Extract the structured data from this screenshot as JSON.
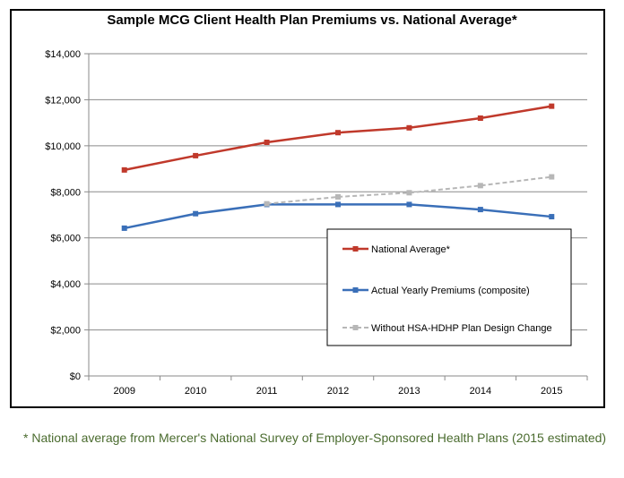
{
  "chart_data": {
    "type": "line",
    "title": "Sample MCG Client Health Plan Premiums vs. National Average*",
    "xlabel": "",
    "ylabel": "",
    "x": [
      "2009",
      "2010",
      "2011",
      "2012",
      "2013",
      "2014",
      "2015"
    ],
    "ylim": [
      0,
      14000
    ],
    "yticks": [
      0,
      2000,
      4000,
      6000,
      8000,
      10000,
      12000,
      14000
    ],
    "ytick_labels": [
      "$0",
      "$2,000",
      "$4,000",
      "$6,000",
      "$8,000",
      "$10,000",
      "$12,000",
      "$14,000"
    ],
    "grid": true,
    "legend_position": "lower-right",
    "series": [
      {
        "name": "National Average*",
        "color": "#c0392b",
        "style": "solid",
        "marker": "square",
        "values": [
          8950,
          9570,
          10150,
          10570,
          10780,
          11200,
          11720
        ]
      },
      {
        "name": "Actual Yearly Premiums (composite)",
        "color": "#3a6fb8",
        "style": "solid",
        "marker": "square",
        "values": [
          6420,
          7050,
          7450,
          7450,
          7450,
          7230,
          6920
        ]
      },
      {
        "name": "Without HSA-HDHP Plan Design Change",
        "color": "#b7b7b7",
        "style": "dashed",
        "marker": "square",
        "start_index": 2,
        "values": [
          null,
          null,
          7480,
          7780,
          7960,
          8270,
          8650
        ]
      }
    ]
  },
  "footnote": "* National average from Mercer's National Survey of Employer-Sponsored Health Plans (2015 estimated)"
}
